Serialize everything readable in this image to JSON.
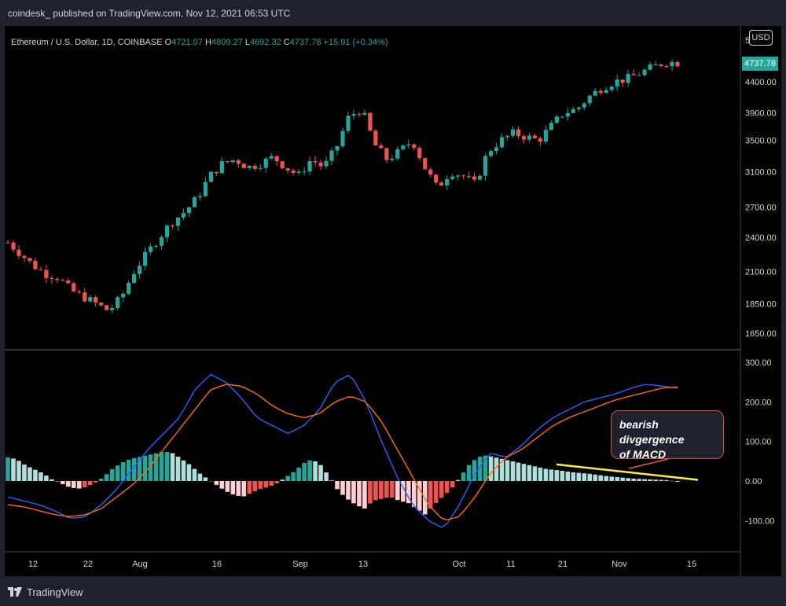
{
  "header": {
    "text": "coindesk_ published on TradingView.com, Nov 12, 2021 06:53 UTC"
  },
  "legend": {
    "symbol": "Ethereum / U.S. Dollar, 1D, COINBASE",
    "o_label": "O",
    "o_value": "4721.07",
    "h_label": "H",
    "h_value": "4809.27",
    "l_label": "L",
    "l_value": "4692.32",
    "c_label": "C",
    "c_value": "4737.78",
    "change": "+15.91 (+0.34%)"
  },
  "currency": "USD",
  "last_price": "4737.78",
  "annotation": {
    "line1": "bearish divgergence",
    "line2": "of MACD"
  },
  "footer": {
    "brand": "TradingView"
  },
  "colors": {
    "up": "#26a69a",
    "down": "#ef5350",
    "macd": "#2962ff",
    "signal": "#ff6d00",
    "trend": "#ffeb3b",
    "bg": "#000000"
  },
  "chart_data": {
    "type": "candlestick",
    "title": "Ethereum / U.S. Dollar, 1D, COINBASE",
    "price_axis": {
      "ticks": [
        4400,
        3900,
        3500,
        3100,
        2700,
        2400,
        2100,
        1850,
        1650
      ],
      "tick_labels": [
        "4400.00",
        "3900.00",
        "3500.00",
        "3100.00",
        "2700.00",
        "2400.00",
        "2100.00",
        "1850.00",
        "1650.00"
      ],
      "top_partial_label": "5"
    },
    "x_axis": {
      "tick_labels": [
        "12",
        "22",
        "Aug",
        "16",
        "Sep",
        "13",
        "Oct",
        "11",
        "21",
        "Nov",
        "15"
      ]
    },
    "price_anchors": [
      2350,
      2250,
      2150,
      2080,
      2050,
      1950,
      1900,
      1850,
      1800,
      1900,
      2100,
      2250,
      2400,
      2550,
      2650,
      2800,
      3050,
      3200,
      3250,
      3150,
      3200,
      3280,
      3150,
      3050,
      3250,
      3150,
      3400,
      3850,
      3950,
      3450,
      3250,
      3350,
      3500,
      3150,
      2900,
      3100,
      3050,
      2950,
      3350,
      3500,
      3600,
      3550,
      3500,
      3700,
      3900,
      3950,
      4150,
      4300,
      4400,
      4450,
      4550,
      4650,
      4750,
      4740
    ],
    "macd_axis": {
      "ticks": [
        300,
        200,
        100,
        0,
        -100
      ],
      "tick_labels": [
        "300.00",
        "200.00",
        "100.00",
        "0.00",
        "-100.00"
      ]
    },
    "macd_series": [
      {
        "name": "MACD",
        "color": "#2962ff",
        "values": [
          -40,
          -50,
          -60,
          -75,
          -95,
          -90,
          -60,
          -20,
          30,
          80,
          120,
          160,
          230,
          270,
          250,
          210,
          160,
          140,
          120,
          140,
          180,
          250,
          270,
          200,
          100,
          10,
          -60,
          -100,
          -120,
          -60,
          20,
          70,
          60,
          90,
          130,
          160,
          180,
          200,
          210,
          220,
          235,
          245,
          240,
          235
        ]
      },
      {
        "name": "Signal",
        "color": "#ff6d00",
        "values": [
          -60,
          -65,
          -75,
          -85,
          -90,
          -85,
          -70,
          -40,
          -10,
          30,
          80,
          130,
          180,
          230,
          245,
          240,
          220,
          190,
          170,
          160,
          170,
          200,
          215,
          200,
          150,
          80,
          10,
          -60,
          -100,
          -90,
          -40,
          20,
          60,
          80,
          110,
          140,
          160,
          175,
          190,
          205,
          215,
          225,
          235,
          238
        ]
      }
    ],
    "macd_histogram": [
      60,
      55,
      40,
      30,
      20,
      5,
      -5,
      -15,
      -20,
      -15,
      -5,
      10,
      30,
      45,
      55,
      60,
      65,
      70,
      75,
      70,
      55,
      40,
      20,
      5,
      -10,
      -25,
      -35,
      -40,
      -30,
      -20,
      -15,
      -5,
      10,
      25,
      45,
      55,
      40,
      10,
      -25,
      -45,
      -60,
      -70,
      -50,
      -45,
      -40,
      -50,
      -55,
      -70,
      -85,
      -60,
      -40,
      -20,
      10,
      40,
      60,
      65,
      60,
      55,
      50,
      45,
      40,
      35,
      30,
      28,
      25,
      22,
      20,
      18,
      15,
      12,
      10,
      8,
      6,
      5,
      4,
      3,
      2,
      -2
    ],
    "divergence_line": {
      "macd_start": 42,
      "macd_end": 3
    }
  }
}
